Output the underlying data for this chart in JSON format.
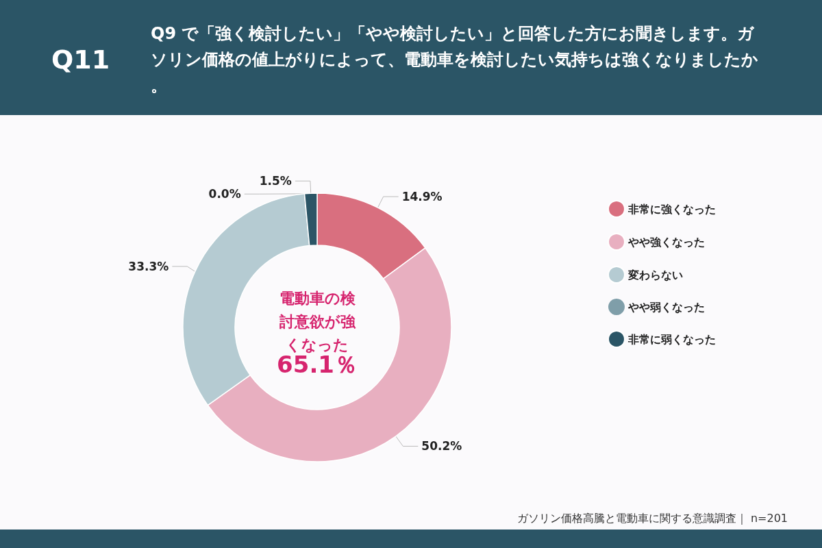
{
  "chart_data": {
    "type": "donut",
    "title": "Q11",
    "subtitle": "Q9 で「強く検討したい」「やや検討したい」と回答した方にお聞きします。ガソリン価格の値上がりによって、電動車を検討したい気持ちは強くなりましたか。",
    "categories": [
      "非常に強くなった",
      "やや強くなった",
      "変わらない",
      "やや弱くなった",
      "非常に弱くなった"
    ],
    "values": [
      14.9,
      50.2,
      33.3,
      0.0,
      1.5
    ],
    "value_labels": [
      "14.9%",
      "50.2%",
      "33.3%",
      "0.0%",
      "1.5%"
    ],
    "colors": [
      "#d96f7f",
      "#e8afc0",
      "#b5cbd2",
      "#7f9ea9",
      "#2b5566"
    ],
    "legend": "right",
    "annotations": [
      "電動車の検討意欲が強くなった",
      "65.1％",
      "ガソリン価格高騰と電動車に関する意識調査｜ n=201"
    ]
  }
}
